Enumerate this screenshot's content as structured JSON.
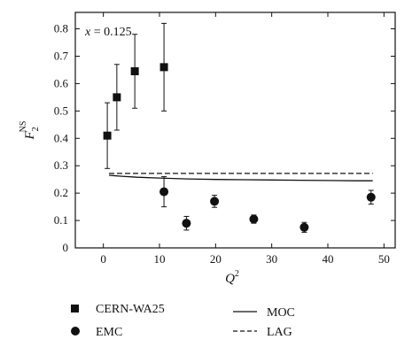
{
  "chart_data": {
    "type": "scatter",
    "annotation": "x = 0.125",
    "xlabel": "Q",
    "xlabel_sup": "2",
    "ylabel": "F",
    "ylabel_sub": "2",
    "ylabel_sup": "NS",
    "xlim": [
      -5,
      52
    ],
    "ylim": [
      0,
      0.86
    ],
    "xticks": [
      0,
      10,
      20,
      30,
      40,
      50
    ],
    "yticks": [
      0,
      0.1,
      0.2,
      0.3,
      0.4,
      0.5,
      0.6,
      0.7,
      0.8
    ],
    "ytick_labels": [
      "0",
      "0.1",
      "0.2",
      "0.3",
      "0.4",
      "0.5",
      "0.6",
      "0.7",
      "0.8"
    ],
    "grid": false,
    "series": [
      {
        "name": "CERN-WA25",
        "marker": "square",
        "points": [
          {
            "x": 0.7,
            "y": 0.41,
            "err": 0.12
          },
          {
            "x": 2.4,
            "y": 0.55,
            "err": 0.12
          },
          {
            "x": 5.6,
            "y": 0.645,
            "err": 0.135
          },
          {
            "x": 10.8,
            "y": 0.66,
            "err": 0.16
          }
        ]
      },
      {
        "name": "EMC",
        "marker": "circle",
        "points": [
          {
            "x": 10.8,
            "y": 0.205,
            "err": 0.055
          },
          {
            "x": 14.8,
            "y": 0.09,
            "err": 0.025
          },
          {
            "x": 19.8,
            "y": 0.17,
            "err": 0.022
          },
          {
            "x": 26.8,
            "y": 0.105,
            "err": 0.015
          },
          {
            "x": 35.8,
            "y": 0.075,
            "err": 0.018
          },
          {
            "x": 47.7,
            "y": 0.185,
            "err": 0.025
          }
        ]
      }
    ],
    "curves": [
      {
        "name": "MOC",
        "style": "solid",
        "x": [
          1,
          3,
          6,
          10,
          15,
          20,
          25,
          30,
          35,
          40,
          45,
          48
        ],
        "y": [
          0.265,
          0.262,
          0.258,
          0.255,
          0.252,
          0.25,
          0.249,
          0.248,
          0.247,
          0.246,
          0.245,
          0.245
        ]
      },
      {
        "name": "LAG",
        "style": "dashed",
        "x": [
          1,
          48
        ],
        "y": [
          0.272,
          0.272
        ]
      }
    ]
  }
}
